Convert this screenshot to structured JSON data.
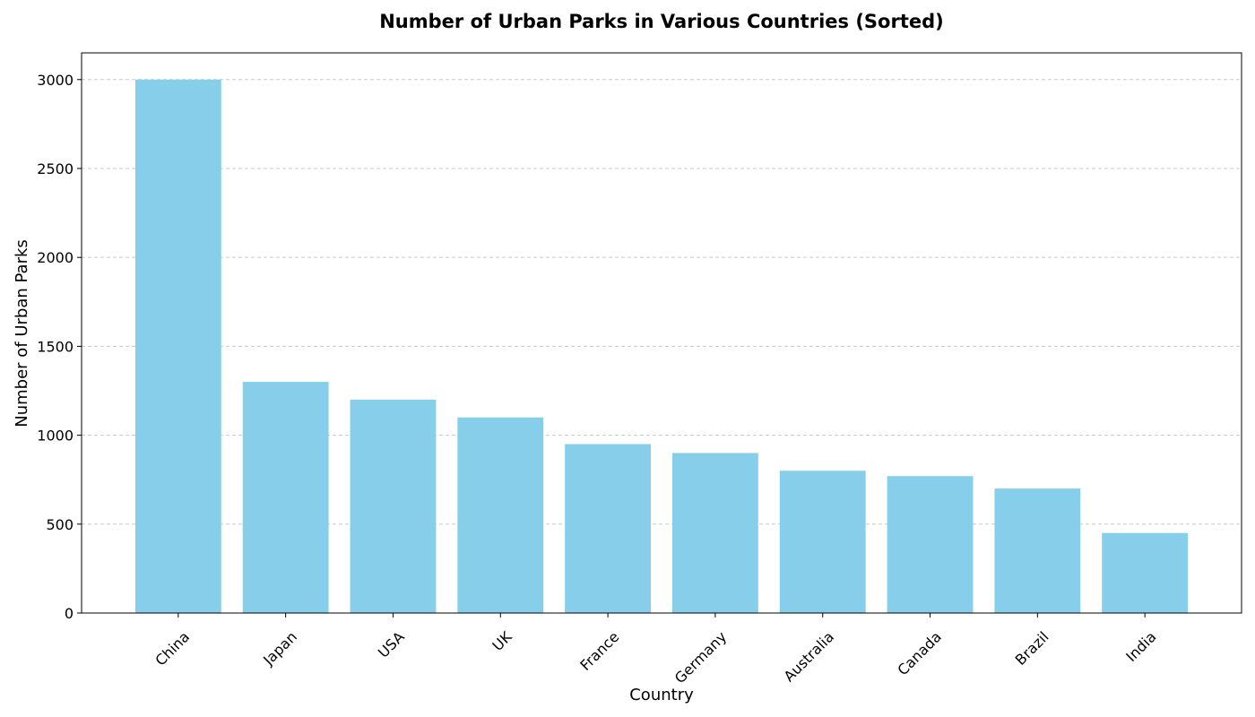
{
  "chart_data": {
    "type": "bar",
    "title": "Number of Urban Parks in Various Countries (Sorted)",
    "xlabel": "Country",
    "ylabel": "Number of Urban Parks",
    "categories": [
      "China",
      "Japan",
      "USA",
      "UK",
      "France",
      "Germany",
      "Australia",
      "Canada",
      "Brazil",
      "India"
    ],
    "values": [
      3000,
      1300,
      1200,
      1100,
      950,
      900,
      800,
      770,
      700,
      450
    ],
    "ylim": [
      0,
      3150
    ],
    "yticks": [
      0,
      500,
      1000,
      1500,
      2000,
      2500,
      3000
    ],
    "ytick_labels": [
      "0",
      "500",
      "1000",
      "1500",
      "2000",
      "2500",
      "3000"
    ],
    "grid": "y-dashed",
    "bar_color": "#87CEEB",
    "grid_color": "#c8c8c8"
  }
}
